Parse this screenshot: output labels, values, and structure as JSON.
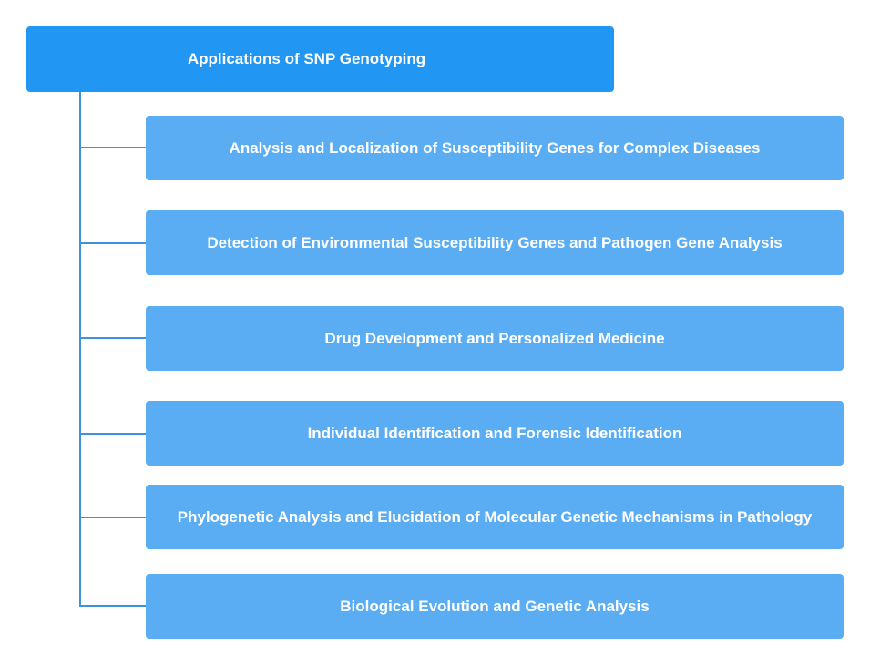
{
  "root": {
    "label": "Applications of SNP Genotyping"
  },
  "children": [
    {
      "label": "Analysis and Localization of Susceptibility Genes for Complex Diseases"
    },
    {
      "label": "Detection of Environmental Susceptibility Genes and Pathogen Gene Analysis"
    },
    {
      "label": "Drug Development and Personalized Medicine"
    },
    {
      "label": "Individual Identification and Forensic Identification"
    },
    {
      "label": "Phylogenetic Analysis and Elucidation of Molecular Genetic Mechanisms in Pathology"
    },
    {
      "label": "Biological Evolution and Genetic Analysis"
    }
  ],
  "colors": {
    "root": "#2196f3",
    "child": "#5aadf2",
    "connector": "#3b93dd"
  }
}
